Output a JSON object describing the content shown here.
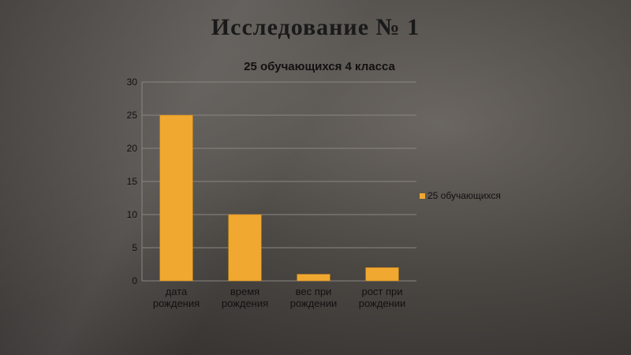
{
  "slide": {
    "title": "Исследование № 1"
  },
  "chart_data": {
    "type": "bar",
    "title": "25 обучающихся 4 класса",
    "categories": [
      [
        "дата",
        "рождения"
      ],
      [
        "время",
        "рождения"
      ],
      [
        "вес при",
        "рождении"
      ],
      [
        "рост при",
        "рождении"
      ]
    ],
    "series": [
      {
        "name": "25 обучающихся",
        "values": [
          25,
          10,
          1,
          2
        ],
        "color": "#f0a830"
      }
    ],
    "ylim": [
      0,
      30
    ],
    "yticks": [
      0,
      5,
      10,
      15,
      20,
      25,
      30
    ],
    "grid": true,
    "legend_position": "right",
    "xlabel": "",
    "ylabel": ""
  }
}
